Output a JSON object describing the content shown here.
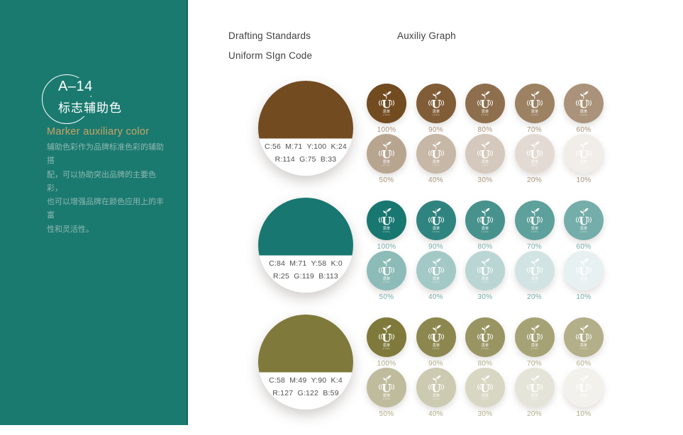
{
  "sidebar": {
    "background": "#1B7A70",
    "accent": "#C9A464",
    "code": "A–14",
    "title_cn": "标志辅助色",
    "subtitle": "Marker auxiliary color",
    "description_lines": [
      "辅助色彩作为品牌标准色彩的辅助搭",
      "配，可以协助突出品牌的主要色彩，",
      "也可以增强品牌在颜色应用上的丰富",
      "性和灵活性。"
    ]
  },
  "header": {
    "line1": "Drafting Standards",
    "line2": "Uniform SIgn Code",
    "right": "Auxiliy Graph"
  },
  "logo": {
    "name": "sicha-tea-logo",
    "cup_glyph": "U",
    "cn": "思茶",
    "latin": "sicha"
  },
  "groups": [
    {
      "name": "brown",
      "color": "#724B21",
      "cmyk": "C:56  M:71  Y:100  K:24",
      "rgb": "R:114  G:75  B:33",
      "tints": [
        [
          "100%",
          "90%",
          "80%",
          "70%",
          "60%"
        ],
        [
          "50%",
          "40%",
          "30%",
          "20%",
          "10%"
        ]
      ]
    },
    {
      "name": "teal",
      "color": "#197771",
      "cmyk": "C:84  M:71  Y:58  K:0",
      "rgb": "R:25  G:119  B:113",
      "tints": [
        [
          "100%",
          "90%",
          "80%",
          "70%",
          "60%"
        ],
        [
          "50%",
          "40%",
          "30%",
          "20%",
          "10%"
        ]
      ]
    },
    {
      "name": "olive",
      "color": "#7F7A3B",
      "cmyk": "C:58  M:49  Y:90  K:4",
      "rgb": "R:127  G:122  B:59",
      "tints": [
        [
          "100%",
          "90%",
          "80%",
          "70%",
          "60%"
        ],
        [
          "50%",
          "40%",
          "30%",
          "20%",
          "10%"
        ]
      ]
    }
  ]
}
